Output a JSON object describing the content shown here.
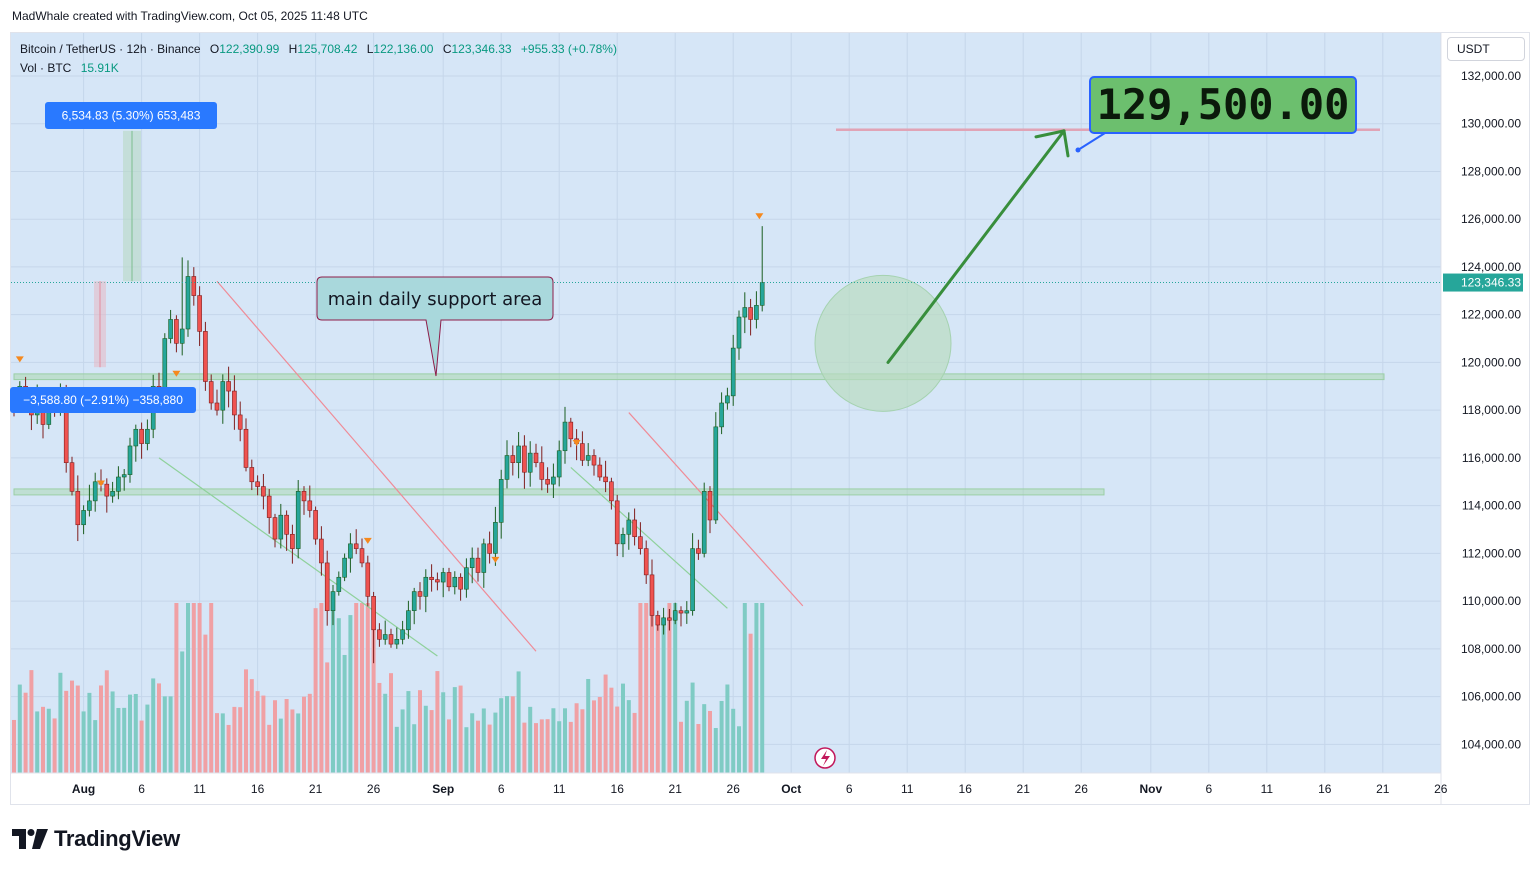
{
  "header": {
    "attribution": "MadWhale created with TradingView.com, Oct 05, 2025 11:48 UTC"
  },
  "legend": {
    "symbol_line": "Bitcoin / TetherUS · 12h · Binance",
    "open_label": "O",
    "open": "122,390.99",
    "high_label": "H",
    "high": "125,708.42",
    "low_label": "L",
    "low": "122,136.00",
    "close_label": "C",
    "close": "123,346.33",
    "change": "+955.33 (+0.78%)",
    "volume_label": "Vol · BTC",
    "volume": "15.91K"
  },
  "price_axis": {
    "currency": "USDT",
    "last_price_label": "123,346.33"
  },
  "annotations": {
    "target_label": "129,500.00",
    "support_callout": "main daily support area",
    "measure_up": "6,534.83 (5.30%) 653,483",
    "measure_down": "−3,588.80 (−2.91%) −358,880"
  },
  "footer": {
    "brand": "TradingView"
  },
  "colors": {
    "background": "#d6e6f7",
    "up": "#26a69a",
    "down": "#ef5350",
    "up_volume": "#7fcbc4",
    "down_volume": "#f0a0a4",
    "target_box": "#6cbf6e",
    "target_border": "#2962ff",
    "arrow": "#388e3c",
    "support_zone": "#a5d6a7",
    "price_tag": "#26a69a"
  },
  "chart_data": {
    "type": "candlestick",
    "symbol": "Bitcoin / TetherUS",
    "timeframe": "12h",
    "exchange": "Binance",
    "ylim": [
      102800,
      133800
    ],
    "y_ticks": [
      104000,
      106000,
      108000,
      110000,
      112000,
      114000,
      116000,
      118000,
      120000,
      122000,
      124000,
      126000,
      128000,
      130000,
      132000
    ],
    "y_tick_labels": [
      "104,000.00",
      "106,000.00",
      "108,000.00",
      "110,000.00",
      "112,000.00",
      "114,000.00",
      "116,000.00",
      "118,000.00",
      "120,000.00",
      "122,000.00",
      "124,000.00",
      "126,000.00",
      "128,000.00",
      "130,000.00",
      "132,000.00"
    ],
    "x_ticks": [
      {
        "bar": 12,
        "label": "Aug",
        "bold": true
      },
      {
        "bar": 22,
        "label": "6"
      },
      {
        "bar": 32,
        "label": "11"
      },
      {
        "bar": 42,
        "label": "16"
      },
      {
        "bar": 52,
        "label": "21"
      },
      {
        "bar": 62,
        "label": "26"
      },
      {
        "bar": 74,
        "label": "Sep",
        "bold": true
      },
      {
        "bar": 84,
        "label": "6"
      },
      {
        "bar": 94,
        "label": "11"
      },
      {
        "bar": 104,
        "label": "16"
      },
      {
        "bar": 114,
        "label": "21"
      },
      {
        "bar": 124,
        "label": "26"
      },
      {
        "bar": 134,
        "label": "Oct",
        "bold": true
      },
      {
        "bar": 144,
        "label": "6"
      },
      {
        "bar": 154,
        "label": "11"
      },
      {
        "bar": 164,
        "label": "16"
      },
      {
        "bar": 174,
        "label": "21"
      },
      {
        "bar": 184,
        "label": "26"
      },
      {
        "bar": 196,
        "label": "Nov",
        "bold": true
      },
      {
        "bar": 206,
        "label": "6"
      },
      {
        "bar": 216,
        "label": "11"
      },
      {
        "bar": 226,
        "label": "16"
      },
      {
        "bar": 236,
        "label": "21"
      },
      {
        "bar": 246,
        "label": "26"
      }
    ],
    "x_range_bars": [
      0,
      248
    ],
    "closes": [
      118200,
      119000,
      118400,
      117800,
      118600,
      117400,
      118200,
      118000,
      118600,
      115800,
      114600,
      113200,
      113800,
      114200,
      115000,
      114900,
      114400,
      114600,
      115200,
      115300,
      116500,
      117200,
      116600,
      117200,
      119000,
      118500,
      121000,
      121800,
      120800,
      121400,
      123600,
      122800,
      121300,
      119200,
      118300,
      118000,
      119200,
      118800,
      117800,
      117200,
      115600,
      115000,
      114800,
      114400,
      113500,
      112600,
      113600,
      112800,
      112200,
      114600,
      114200,
      113800,
      112600,
      111600,
      109600,
      110400,
      111000,
      111800,
      112400,
      112200,
      111600,
      110200,
      108800,
      108400,
      108600,
      108200,
      108400,
      108800,
      109600,
      110400,
      110200,
      111000,
      110900,
      110800,
      111200,
      110600,
      111000,
      110500,
      111400,
      111800,
      111200,
      112400,
      112000,
      113300,
      115100,
      116100,
      115800,
      116500,
      115400,
      116200,
      115800,
      115100,
      114900,
      115200,
      116300,
      117500,
      116800,
      116600,
      115900,
      116100,
      115700,
      115200,
      115000,
      114200,
      112400,
      112800,
      113400,
      112700,
      112200,
      111100,
      109400,
      109000,
      109300,
      109200,
      109600,
      109500,
      109600,
      112200,
      112000,
      114600,
      113400,
      117300,
      118300,
      118600,
      120600,
      121900,
      122300,
      121800,
      122390,
      123346
    ],
    "annotated_values": {
      "target": 129500,
      "last_price": 123346.33,
      "open": 122390.99,
      "high": 125708.42,
      "low": 122136.0,
      "close": 123346.33,
      "support_upper": 119500,
      "support_lower": 114600,
      "measure_up_change": 6534.83,
      "measure_up_percent": 5.3,
      "measure_down_change": -3588.8,
      "measure_down_percent": -2.91
    },
    "volume_label": "Vol · BTC",
    "last_volume": "15.91K"
  }
}
